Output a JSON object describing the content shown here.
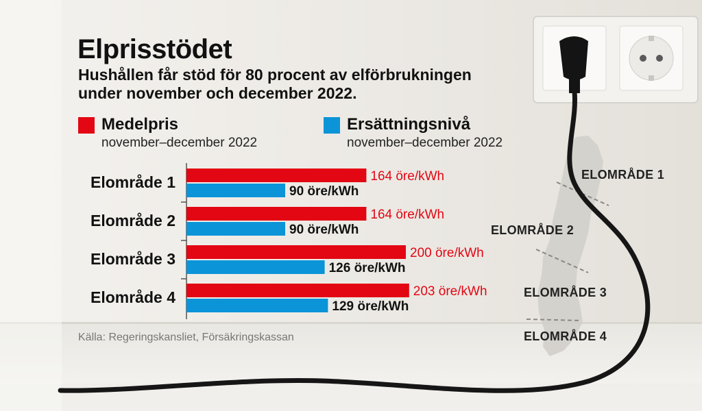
{
  "title": "Elprisstödet",
  "subtitle": "Hushållen får stöd för 80 procent av elförbrukningen under november och december 2022.",
  "legend": [
    {
      "name": "Medelpris",
      "period": "november–december 2022",
      "color": "#e30613"
    },
    {
      "name": "Ersättningsnivå",
      "period": "november–december 2022",
      "color": "#0c94d8"
    }
  ],
  "source": "Källa: Regeringskansliet, Försäkringskassan",
  "map_labels": [
    "ELOMRÅDE 1",
    "ELOMRÅDE 2",
    "ELOMRÅDE 3",
    "ELOMRÅDE 4"
  ],
  "chart_data": {
    "type": "bar",
    "orientation": "horizontal",
    "categories": [
      "Elområde 1",
      "Elområde 2",
      "Elområde 3",
      "Elområde 4"
    ],
    "series": [
      {
        "name": "Medelpris",
        "values": [
          164,
          164,
          200,
          203
        ],
        "unit": "öre/kWh",
        "color": "#e30613"
      },
      {
        "name": "Ersättningsnivå",
        "values": [
          90,
          90,
          126,
          129
        ],
        "unit": "öre/kWh",
        "color": "#0c94d8"
      }
    ],
    "data_labels": [
      [
        "164 öre/kWh",
        "164 öre/kWh",
        "200 öre/kWh",
        "203 öre/kWh"
      ],
      [
        "90 öre/kWh",
        "90 öre/kWh",
        "126 öre/kWh",
        "129 öre/kWh"
      ]
    ],
    "xlim": [
      0,
      210
    ],
    "grid": false,
    "legend_position": "top"
  }
}
